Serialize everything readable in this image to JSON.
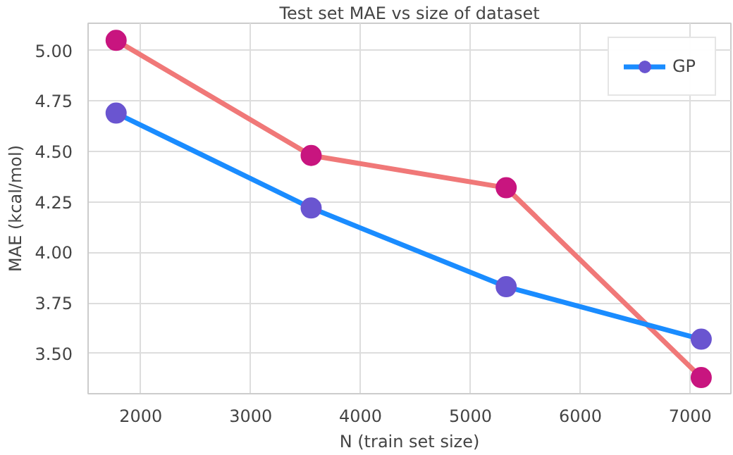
{
  "chart_data": {
    "type": "line",
    "title": "Test set MAE vs size of dataset",
    "xlabel": "N (train set size)",
    "ylabel": "MAE (kcal/mol)",
    "x": [
      1775,
      3550,
      5325,
      7100
    ],
    "series": [
      {
        "color": "#f07878",
        "colors": [
          "#c8157f",
          "#c8157f",
          "#c8157f",
          "#c8157f"
        ],
        "values": [
          5.05,
          4.48,
          4.32,
          3.38
        ]
      },
      {
        "name": "GP",
        "color": "#1a8cff",
        "colors": [
          "#6a55d0",
          "#6a55d0",
          "#6a55d0",
          "#6a55d0"
        ],
        "values": [
          4.69,
          4.22,
          3.83,
          3.57
        ]
      }
    ],
    "xlim": [
      1520,
      7370
    ],
    "ylim": [
      3.3,
      5.135
    ],
    "xticks": [
      2000,
      3000,
      4000,
      5000,
      6000,
      7000
    ],
    "yticks": [
      {
        "value": 3.5,
        "label": "3.50"
      },
      {
        "value": 3.75,
        "label": "3.75"
      },
      {
        "value": 4.0,
        "label": "4.00"
      },
      {
        "value": 4.25,
        "label": "4.25"
      },
      {
        "value": 4.5,
        "label": "4.50"
      },
      {
        "value": 4.75,
        "label": "4.75"
      },
      {
        "value": 5.0,
        "label": "5.00"
      }
    ],
    "grid": true,
    "legend": "top right",
    "marker": "circle",
    "line_style": "solid"
  }
}
